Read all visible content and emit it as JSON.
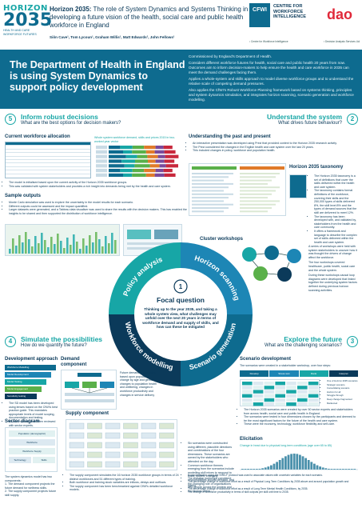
{
  "header": {
    "logo_word": "HORIZON",
    "logo_year": "2035",
    "logo_sub": "HEALTH AND CARE WORKFORCE FUTURES",
    "title_bold": "Horizon 2035:",
    "title_rest": " The role of System Dynamics and Systems Thinking in developing a future vision of the health, social care and public health workforce in England",
    "authors": "Siôn Cave¹, Tom Lycoun¹, Graham Willis¹, Matt Edwards², John Fellows¹",
    "cfwi_mark": "CFWI",
    "cfwi_name": "CENTRE FOR WORKFORCE INTELLIGENCE",
    "cfwi_caption": "¹ Centre for Workforce Intelligence",
    "dao_mark": "dao",
    "dao_caption": "² Decision Analysis Services Ltd"
  },
  "banner": {
    "title": "The Department of Health in England is using System Dynamics to support policy development",
    "paragraphs": [
      "Commissioned by England's Department of Health.",
      "Considers different workforce futures for health, social care and public health 20 years from now. Outcomes aim to inform decision-makers to help ensure the health and care workforce in 2035 can meet the demand challenges facing them.",
      "Applies a whole-system and skills approach to model diverse workforce groups and to understand the relative scale of competing demand pressures.",
      "Also applies the CfWI's Robust Workforce Planning framework based on systems thinking, principles and system dynamics simulation, and integrates horizon scanning, scenario generation and workforce modelling."
    ]
  },
  "sections": {
    "s5": {
      "num": "5",
      "title": "Inform robust decisions",
      "subtitle": "What are the best options for decision makers?"
    },
    "s2": {
      "num": "2",
      "title": "Understand the system",
      "subtitle": "What drives future behaviour?"
    },
    "s4": {
      "num": "4",
      "title": "Simulate the possibilities",
      "subtitle": "How do we quantify the future?"
    },
    "s3": {
      "num": "3",
      "title": "Explore the future",
      "subtitle": "What are the challenging scenarios?"
    }
  },
  "top_left": {
    "current_title": "Current workforce allocation",
    "demand_caption": "Whole system workforce demand, skills and prices 2015 in two-worked year vector",
    "notes": [
      "The model is initialised based upon the current activity of the Horizon 2035 workforce groups.",
      "This was validated with system stakeholders and provides a rich insight into demands being met by the health and care system."
    ],
    "sample_title": "Sample outputs",
    "sample_notes": [
      "Monte Carlo simulation was used to explore the uncertainty in the model results for each scenario.",
      "Different outputs could be assessed and the impact quantified.",
      "Larger datasets were generated, and a Tableau data visualiser was used to share the results with the decision makers. This has enabled the insights to be shared and then supported the distribution of workforce intelligence."
    ]
  },
  "top_right": {
    "title": "Understanding the past and present",
    "notes": [
      "An interactive presentation was developed using Prezi that provided context to the Horizon 2035 research activity.",
      "The Prezi considered the changes in the English health and care system over the last 20 years.",
      "This included changes in policy, workforce and population health."
    ],
    "taxonomy_title": "Horizon 2035 taxonomy",
    "taxonomy_notes": [
      "The Horizon 2035 taxonomy is a set of definitions that cover the skills delivered within the health and care system.",
      "The taxonomy contains formal definitions of the workforce, covering their skills and the 250,000 types of skills delivered 8%, the skill level 8% and the types of demand sources that the skill are delivered to meet 12%.",
      "The taxonomy has been developed with, and validated by, stakeholders from the health and care community.",
      "It offers a framework and language to describe the complex set of skills delivered within the health and care system."
    ]
  },
  "cluster": {
    "title": "Cluster workshops",
    "notes": [
      "A series of workshops were held with system stakeholders to uncover how it was thought the drivers of change affect the workforce.",
      "The four workshops covered healthcare, public health, social care and the whole system.",
      "During these workshops causal loop diagrams were developed that linked together the underlying system factors defined during previous horizon scanning activities."
    ]
  },
  "wheel": {
    "num": "1",
    "label": "Focal question",
    "question": "Thinking up to the year 2035, and taking a whole system view, what challenges may unfold over the next 20 years in terms of workforce demand and supply of skills, and how can these be mitigated",
    "segments": [
      "Policy analysis",
      "Horizon scanning",
      "Scenario generation",
      "Workforce modelling"
    ],
    "colors": {
      "teal": "#17a6a6",
      "blue": "#1d86b5",
      "navy": "#0e6b8f",
      "dark": "#0b3a5a"
    }
  },
  "bottom_left": {
    "dev_title": "Development approach",
    "dev_steps": [
      "Workforce Modelling",
      "Model Development",
      "Model Testing",
      "Model Engagement",
      "Sensitivity testing"
    ],
    "dev_notes": [
      "The SD model has been developed using lenses based on the CfWI's best practice guide. This mandates appropriate levels of model scoping, documentation and testing.",
      "All assumptions have been reviewed with sector experts."
    ],
    "demand_title": "Demand component",
    "demand_notes": "Future demand is calculated based upon population change by age and gender, changes to population health and wellbeing, changes in workforce productivity and changes in service delivery",
    "sector_title": "Sector diagram",
    "sector_labels": [
      "Population (demographic)",
      "Workforce",
      "Workforce Supply",
      "Technology",
      "Skills"
    ],
    "sector_notes": [
      "The system dynamics model has two components:",
      "The demand component projects the future demand for wellness skills.",
      "The supply component projects future skill supply."
    ],
    "supply_title": "Supply component",
    "supply_notes": [
      "The supply component simulates the 16 horizon 2035 workforce groups in terms of 24 distinct workforces and 51 different types of training.",
      "Both workforce and training stock variables are inflows, delays and outflows.",
      "The supply component has been benchmarked against CfWI's detailed workforce models."
    ]
  },
  "bottom_right": {
    "scenario_title": "Scenario development",
    "scenario_intro": "The scenarios were created in a stakeholder workshop, over four steps:",
    "scenario_steps": [
      "Develop",
      "Stress test",
      "Rank",
      "Interpret"
    ],
    "scenario_list": [
      "One of Horizon 2035 scenarios",
      "Strategic scenario",
      "Consolidating scenario",
      "Horizon for all",
      "Struggle through",
      "Deep change fragmented",
      "Market-led"
    ],
    "scenario_notes": [
      "The Horizon 2035 scenarios were created by over 50 sector experts and stakeholders from across health, social care and public health in England.",
      "The scenarios were tested in four dimensions chosen by the participants and deemed to be the most significant factors for the future of the health and care system.",
      "These were the economy, technology, workforce flexibility and self-care."
    ],
    "elicitation_title": "Elicitation",
    "elicitation_chart_title": "Change in head due to physical long-term conditions (age over 65 to 85)",
    "elicitation_notes": [
      "Expert elicitation using the SHELF protocol was used to associate values with uncertain variables for each scenario.",
      "The elicitation workshops considered:",
      "The percentage change in workforce effort as a result of Physical Long Term Conditions by 2035 above and around population growth and ageing.",
      "The percentage change in workforce effort as a result of Long Term Mental Health Conditions, by 2035.",
      "The change in workforce productivity in terms of skill outputs per skill unit time to 2035."
    ],
    "scenario_generation_notes": [
      "Six scenarios were constructed using different, plausible directions and combinations of the four dimensions. These scenarios are owned by the stakeholders who attended on the day.",
      "Common workforce themes emerging from the scenarios include modelling skill mixes to respond to those futures, changing responsibilities around demand, and the changing role of organisations and people across the system and the sectors within."
    ]
  },
  "palette": {
    "teal": "#17a6a6",
    "navy": "#0e6b8f",
    "dark": "#0b3a5a",
    "orange": "#e07b2a",
    "green": "#5ab04a",
    "purple": "#7a4a9c",
    "red": "#c8283c"
  }
}
